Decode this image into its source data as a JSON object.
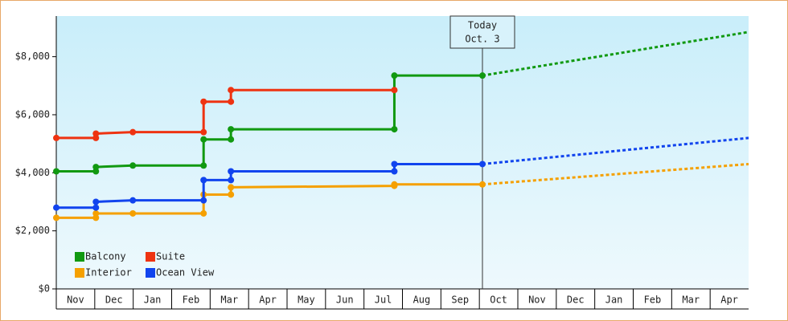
{
  "chart_data": {
    "type": "step-line",
    "categories": [
      "Nov",
      "Dec",
      "Jan",
      "Feb",
      "Mar",
      "Apr",
      "May",
      "Jun",
      "Jul",
      "Aug",
      "Sep",
      "Oct",
      "Nov",
      "Dec",
      "Jan",
      "Feb",
      "Mar",
      "Apr"
    ],
    "xlim": [
      0,
      18
    ],
    "ylim": [
      0,
      9400
    ],
    "yticks": [
      {
        "value": 0,
        "label": "$0"
      },
      {
        "value": 2000,
        "label": "$2,000"
      },
      {
        "value": 4000,
        "label": "$4,000"
      },
      {
        "value": 6000,
        "label": "$6,000"
      },
      {
        "value": 8000,
        "label": "$8,000"
      }
    ],
    "legend": "lower left",
    "annotation": {
      "lines": [
        "Today",
        "Oct. 3"
      ],
      "x": 11.08
    },
    "series": [
      {
        "name": "Balcony",
        "color": "#119911",
        "x": [
          0,
          1.03,
          1.03,
          1.99,
          3.83,
          3.83,
          4.54,
          4.54,
          8.79,
          8.79,
          11.08
        ],
        "values": [
          4050,
          4050,
          4200,
          4250,
          4250,
          5150,
          5150,
          5500,
          5500,
          7350,
          7350
        ],
        "projection": {
          "x": [
            11.08,
            18
          ],
          "values": [
            7350,
            8850
          ]
        }
      },
      {
        "name": "Suite",
        "color": "#ee3311",
        "x": [
          0,
          1.03,
          1.03,
          1.99,
          3.83,
          3.83,
          4.54,
          4.54,
          8.79
        ],
        "values": [
          5200,
          5200,
          5350,
          5400,
          5400,
          6450,
          6450,
          6850,
          6850
        ]
      },
      {
        "name": "Interior",
        "color": "#f5a000",
        "x": [
          0,
          1.03,
          1.03,
          1.99,
          3.83,
          3.83,
          4.54,
          4.54,
          8.79,
          8.79,
          11.08
        ],
        "values": [
          2450,
          2450,
          2600,
          2600,
          2600,
          3250,
          3250,
          3500,
          3550,
          3600,
          3600
        ],
        "projection": {
          "x": [
            11.08,
            18
          ],
          "values": [
            3600,
            4300
          ]
        }
      },
      {
        "name": "Ocean View",
        "color": "#1144ee",
        "x": [
          0,
          1.03,
          1.03,
          1.99,
          3.83,
          3.83,
          4.54,
          4.54,
          8.79,
          8.79,
          11.08
        ],
        "values": [
          2800,
          2800,
          3000,
          3050,
          3050,
          3750,
          3750,
          4050,
          4050,
          4300,
          4300
        ],
        "projection": {
          "x": [
            11.08,
            18
          ],
          "values": [
            4300,
            5200
          ]
        }
      }
    ]
  }
}
